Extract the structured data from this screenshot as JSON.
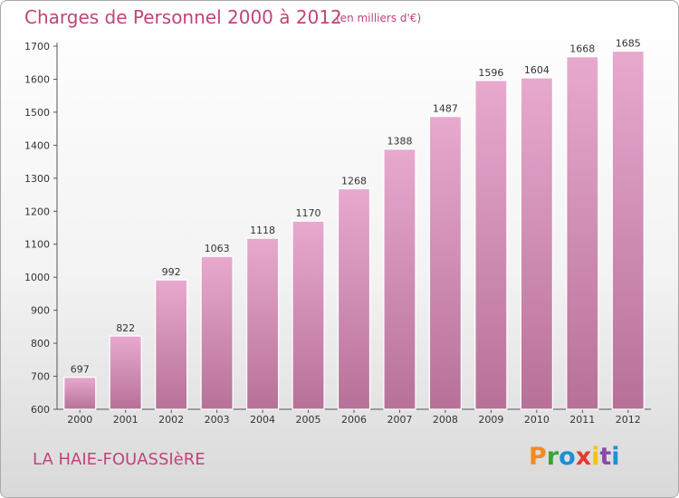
{
  "header": {
    "title": "Charges de Personnel 2000 à 2012",
    "subtitle": "(en milliers d'€)"
  },
  "footer": {
    "commune": "LA HAIE-FOUASSIèRE",
    "logo_text": "Proxiti",
    "logo_colors": [
      "#f08c1e",
      "#3aa536",
      "#1e8fd6",
      "#e6392d",
      "#f5c400",
      "#8b4aa8",
      "#1e8fd6"
    ]
  },
  "colors": {
    "bar_top": "#e8a9cf",
    "bar_bottom": "#b77199",
    "text_accent": "#c1447a"
  },
  "chart_data": {
    "type": "bar",
    "categories": [
      "2000",
      "2001",
      "2002",
      "2003",
      "2004",
      "2005",
      "2006",
      "2007",
      "2008",
      "2009",
      "2010",
      "2011",
      "2012"
    ],
    "values": [
      697,
      822,
      992,
      1063,
      1118,
      1170,
      1268,
      1388,
      1487,
      1596,
      1604,
      1668,
      1685
    ],
    "yticks": [
      600,
      700,
      800,
      900,
      1000,
      1100,
      1200,
      1300,
      1400,
      1500,
      1600,
      1700
    ],
    "ylim": [
      600,
      1700
    ],
    "grid": false,
    "legend": "none"
  }
}
